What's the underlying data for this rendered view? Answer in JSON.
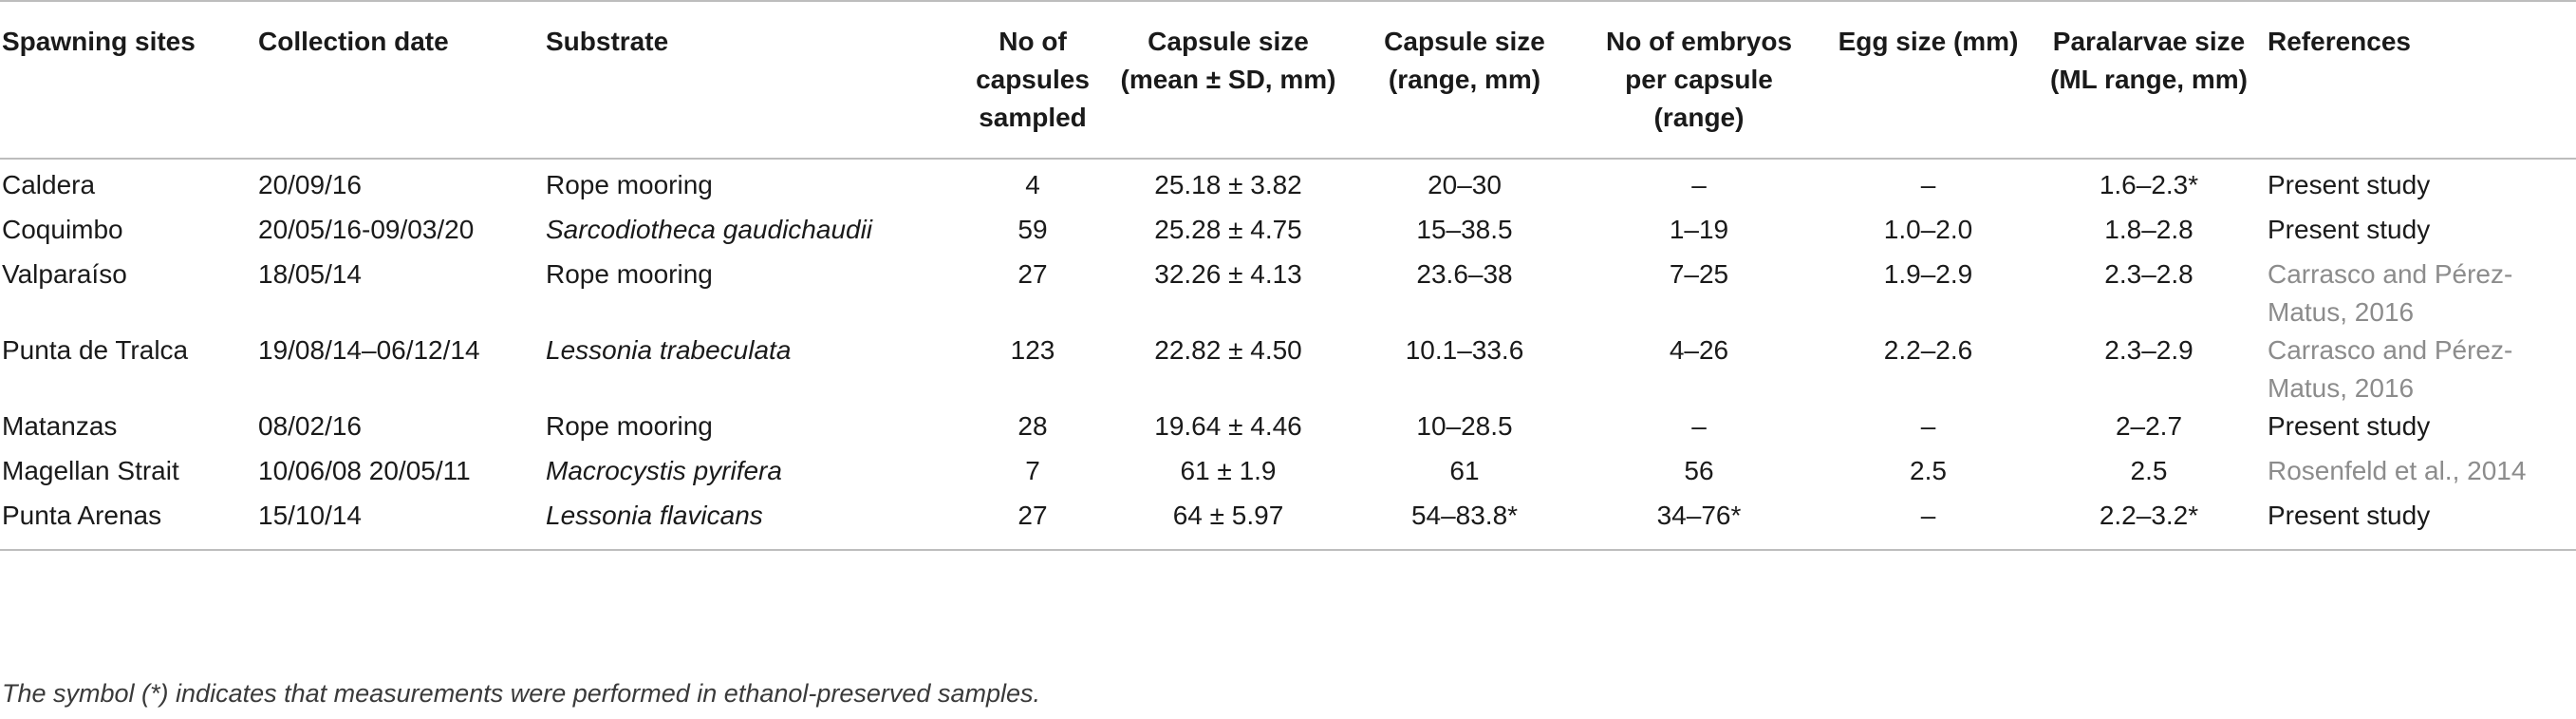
{
  "table": {
    "headers": [
      {
        "key": "site",
        "label": "Spawning sites"
      },
      {
        "key": "date",
        "label": "Collection date"
      },
      {
        "key": "substrate",
        "label": "Substrate"
      },
      {
        "key": "n_capsules",
        "label": "No of capsules sampled"
      },
      {
        "key": "cap_mean",
        "label": "Capsule size (mean ± SD, mm)"
      },
      {
        "key": "cap_range",
        "label": "Capsule size (range, mm)"
      },
      {
        "key": "embryos",
        "label": "No of embryos per capsule (range)"
      },
      {
        "key": "egg",
        "label": "Egg size (mm)"
      },
      {
        "key": "paralarvae",
        "label": "Paralarvae size (ML range, mm)"
      },
      {
        "key": "references",
        "label": "References"
      }
    ],
    "rows": [
      {
        "site": "Caldera",
        "date": "20/09/16",
        "substrate": "Rope mooring",
        "substrate_italic": false,
        "n_capsules": "4",
        "cap_mean": "25.18 ± 3.82",
        "cap_range": "20–30",
        "embryos": "–",
        "egg": "–",
        "paralarvae": "1.6–2.3*",
        "references": "Present study",
        "ref_cited": false
      },
      {
        "site": "Coquimbo",
        "date": "20/05/16-09/03/20",
        "substrate": "Sarcodiotheca gaudichaudii",
        "substrate_italic": true,
        "n_capsules": "59",
        "cap_mean": "25.28 ± 4.75",
        "cap_range": "15–38.5",
        "embryos": "1–19",
        "egg": "1.0–2.0",
        "paralarvae": "1.8–2.8",
        "references": "Present study",
        "ref_cited": false
      },
      {
        "site": "Valparaíso",
        "date": "18/05/14",
        "substrate": "Rope mooring",
        "substrate_italic": false,
        "n_capsules": "27",
        "cap_mean": "32.26 ± 4.13",
        "cap_range": "23.6–38",
        "embryos": "7–25",
        "egg": "1.9–2.9",
        "paralarvae": "2.3–2.8",
        "references": "Carrasco and Pérez-Matus, 2016",
        "ref_cited": true
      },
      {
        "site": "Punta de Tralca",
        "date": "19/08/14–06/12/14",
        "substrate": "Lessonia trabeculata",
        "substrate_italic": true,
        "n_capsules": "123",
        "cap_mean": "22.82 ± 4.50",
        "cap_range": "10.1–33.6",
        "embryos": "4–26",
        "egg": "2.2–2.6",
        "paralarvae": "2.3–2.9",
        "references": "Carrasco and Pérez-Matus, 2016",
        "ref_cited": true
      },
      {
        "site": "Matanzas",
        "date": "08/02/16",
        "substrate": "Rope mooring",
        "substrate_italic": false,
        "n_capsules": "28",
        "cap_mean": "19.64 ± 4.46",
        "cap_range": "10–28.5",
        "embryos": "–",
        "egg": "–",
        "paralarvae": "2–2.7",
        "references": "Present study",
        "ref_cited": false
      },
      {
        "site": "Magellan Strait",
        "date": "10/06/08 20/05/11",
        "substrate": "Macrocystis pyrifera",
        "substrate_italic": true,
        "n_capsules": "7",
        "cap_mean": "61 ± 1.9",
        "cap_range": "61",
        "embryos": "56",
        "egg": "2.5",
        "paralarvae": "2.5",
        "references": "Rosenfeld et al., 2014",
        "ref_cited": true
      },
      {
        "site": "Punta Arenas",
        "date": "15/10/14",
        "substrate": "Lessonia flavicans",
        "substrate_italic": true,
        "n_capsules": "27",
        "cap_mean": "64 ± 5.97",
        "cap_range": "54–83.8*",
        "embryos": "34–76*",
        "egg": "–",
        "paralarvae": "2.2–3.2*",
        "references": "Present study",
        "ref_cited": false
      }
    ]
  },
  "footnote": "The symbol (*) indicates that measurements were performed in ethanol-preserved samples.",
  "colors": {
    "text": "#1a1a1a",
    "rule": "#bdbdbd",
    "cited_reference": "#8c8c8c"
  }
}
